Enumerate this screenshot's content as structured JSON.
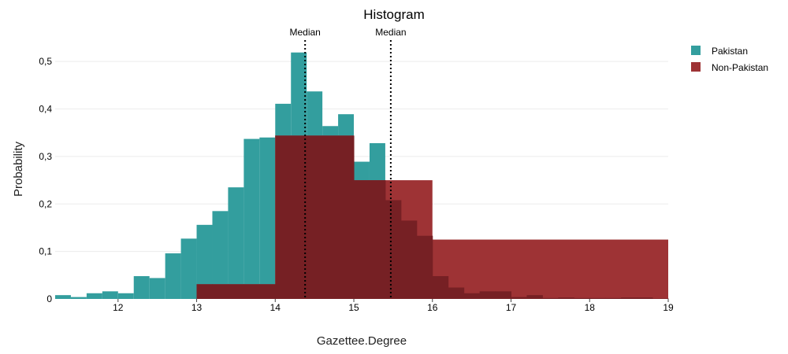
{
  "chart_data": {
    "type": "bar",
    "title": "Histogram",
    "xlabel": "Gazettee.Degree",
    "ylabel": "Probability",
    "xlim": [
      11.2,
      19
    ],
    "ylim": [
      0,
      0.55
    ],
    "x_ticks": [
      12,
      13,
      14,
      15,
      16,
      17,
      18,
      19
    ],
    "y_ticks": [
      0,
      0.1,
      0.2,
      0.3,
      0.4,
      0.5
    ],
    "y_tick_labels": [
      "0",
      "0,1",
      "0,2",
      "0,3",
      "0,4",
      "0,5"
    ],
    "grid": true,
    "legend_position": "top-right",
    "series": [
      {
        "name": "Pakistan",
        "color": "#339e9e",
        "bins": [
          {
            "x0": 11.2,
            "x1": 11.4,
            "y": 0.008
          },
          {
            "x0": 11.4,
            "x1": 11.6,
            "y": 0.004
          },
          {
            "x0": 11.6,
            "x1": 11.8,
            "y": 0.012
          },
          {
            "x0": 11.8,
            "x1": 12.0,
            "y": 0.016
          },
          {
            "x0": 12.0,
            "x1": 12.2,
            "y": 0.012
          },
          {
            "x0": 12.2,
            "x1": 12.4,
            "y": 0.048
          },
          {
            "x0": 12.4,
            "x1": 12.6,
            "y": 0.044
          },
          {
            "x0": 12.6,
            "x1": 12.8,
            "y": 0.096
          },
          {
            "x0": 12.8,
            "x1": 13.0,
            "y": 0.127
          },
          {
            "x0": 13.0,
            "x1": 13.2,
            "y": 0.156
          },
          {
            "x0": 13.2,
            "x1": 13.4,
            "y": 0.185
          },
          {
            "x0": 13.4,
            "x1": 13.6,
            "y": 0.235
          },
          {
            "x0": 13.6,
            "x1": 13.8,
            "y": 0.337
          },
          {
            "x0": 13.8,
            "x1": 14.0,
            "y": 0.34
          },
          {
            "x0": 14.0,
            "x1": 14.2,
            "y": 0.411
          },
          {
            "x0": 14.2,
            "x1": 14.4,
            "y": 0.519
          },
          {
            "x0": 14.4,
            "x1": 14.6,
            "y": 0.437
          },
          {
            "x0": 14.6,
            "x1": 14.8,
            "y": 0.364
          },
          {
            "x0": 14.8,
            "x1": 15.0,
            "y": 0.389
          },
          {
            "x0": 15.0,
            "x1": 15.2,
            "y": 0.289
          },
          {
            "x0": 15.2,
            "x1": 15.4,
            "y": 0.328
          },
          {
            "x0": 15.4,
            "x1": 15.6,
            "y": 0.208
          },
          {
            "x0": 15.6,
            "x1": 15.8,
            "y": 0.165
          },
          {
            "x0": 15.8,
            "x1": 16.0,
            "y": 0.133
          },
          {
            "x0": 16.0,
            "x1": 16.2,
            "y": 0.048
          },
          {
            "x0": 16.2,
            "x1": 16.4,
            "y": 0.024
          },
          {
            "x0": 16.4,
            "x1": 16.6,
            "y": 0.012
          },
          {
            "x0": 16.6,
            "x1": 16.8,
            "y": 0.016
          },
          {
            "x0": 16.8,
            "x1": 17.0,
            "y": 0.016
          },
          {
            "x0": 17.0,
            "x1": 17.2,
            "y": 0.004
          },
          {
            "x0": 17.2,
            "x1": 17.4,
            "y": 0.008
          },
          {
            "x0": 17.4,
            "x1": 17.6,
            "y": 0.002
          },
          {
            "x0": 17.6,
            "x1": 17.8,
            "y": 0.003
          },
          {
            "x0": 17.8,
            "x1": 18.0,
            "y": 0.002
          },
          {
            "x0": 18.0,
            "x1": 18.2,
            "y": 0.002
          },
          {
            "x0": 18.2,
            "x1": 18.4,
            "y": 0.002
          },
          {
            "x0": 18.4,
            "x1": 18.6,
            "y": 0.003
          },
          {
            "x0": 18.6,
            "x1": 18.8,
            "y": 0.003
          },
          {
            "x0": 18.8,
            "x1": 19.0,
            "y": 0.001
          }
        ]
      },
      {
        "name": "Non-Pakistan",
        "color": "#9e3335",
        "bins": [
          {
            "x0": 13.0,
            "x1": 14.0,
            "y": 0.031
          },
          {
            "x0": 14.0,
            "x1": 15.0,
            "y": 0.344
          },
          {
            "x0": 15.0,
            "x1": 16.0,
            "y": 0.25
          },
          {
            "x0": 16.0,
            "x1": 19.0,
            "y": 0.125
          }
        ]
      }
    ],
    "overlap_color": "#762024",
    "medians": [
      {
        "label": "Median",
        "x": 14.38
      },
      {
        "label": "Median",
        "x": 15.47
      }
    ]
  }
}
